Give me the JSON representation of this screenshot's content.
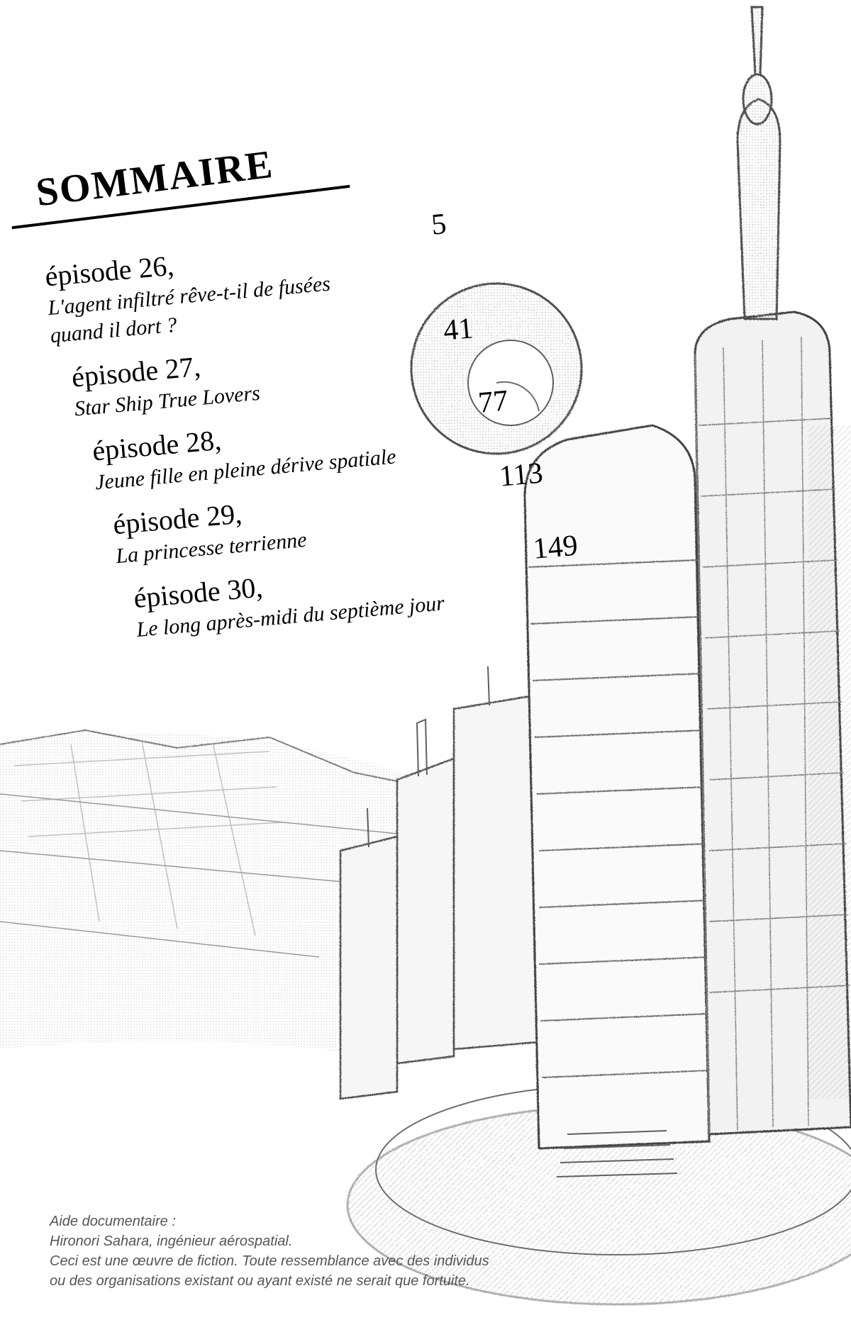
{
  "title": "SOMMAIRE",
  "title_fontsize": 56,
  "title_rotation_deg": -7,
  "toc_rotation_deg": -5,
  "text_color": "#000000",
  "background_color": "#ffffff",
  "episode_label_fontsize": 40,
  "episode_title_fontsize": 30,
  "page_number_fontsize": 42,
  "episodes": [
    {
      "label": "épisode 26,",
      "title": "L'agent infiltré rêve-t-il de fusées\nquand il dort ?",
      "page": "5"
    },
    {
      "label": "épisode 27,",
      "title": "Star Ship True Lovers",
      "page": "41"
    },
    {
      "label": "épisode 28,",
      "title": "Jeune fille en pleine dérive spatiale",
      "page": "77"
    },
    {
      "label": "épisode 29,",
      "title": "La princesse terrienne",
      "page": "113"
    },
    {
      "label": "épisode 30,",
      "title": "Le long après-midi du septième jour",
      "page": "149"
    }
  ],
  "footer": {
    "label": "Aide documentaire :",
    "credit": "Hironori Sahara, ingénieur aérospatial.",
    "disclaimer": "Ceci est une œuvre de fiction. Toute ressemblance avec des individus\nou des organisations existant ou ayant existé ne serait que fortuite.",
    "fontsize": 20,
    "color": "#555555"
  },
  "sketch": {
    "description": "hand-drawn pencil sketch of futuristic tower and cityscape",
    "stroke_color": "#888888",
    "fill_color": "#cccccc"
  }
}
